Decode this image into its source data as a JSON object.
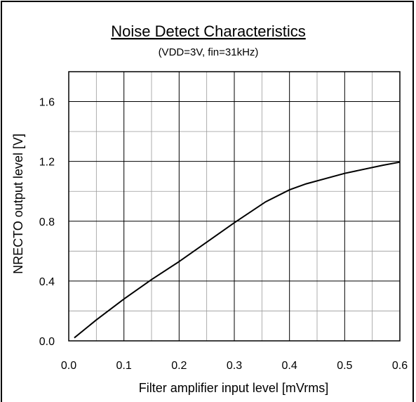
{
  "chart_data": {
    "type": "line",
    "title": "Noise Detect Characteristics",
    "subtitle": "(VDD=3V, fin=31kHz)",
    "xlabel": "Filter amplifier input level [mVrms]",
    "ylabel": "NRECTO output level [V]",
    "xlim": [
      0.0,
      0.6
    ],
    "ylim": [
      0.0,
      1.8
    ],
    "x_ticks": [
      "0.0",
      "0.1",
      "0.2",
      "0.3",
      "0.4",
      "0.5",
      "0.6"
    ],
    "y_ticks": [
      "0.0",
      "0.4",
      "0.8",
      "1.2",
      "1.6"
    ],
    "grid": true,
    "series": [
      {
        "x": [
          0.01,
          0.05,
          0.1,
          0.15,
          0.2,
          0.25,
          0.3,
          0.357,
          0.4,
          0.43,
          0.5,
          0.57,
          0.6
        ],
        "y": [
          0.02,
          0.14,
          0.28,
          0.41,
          0.53,
          0.66,
          0.79,
          0.93,
          1.01,
          1.05,
          1.12,
          1.175,
          1.195
        ]
      }
    ]
  }
}
